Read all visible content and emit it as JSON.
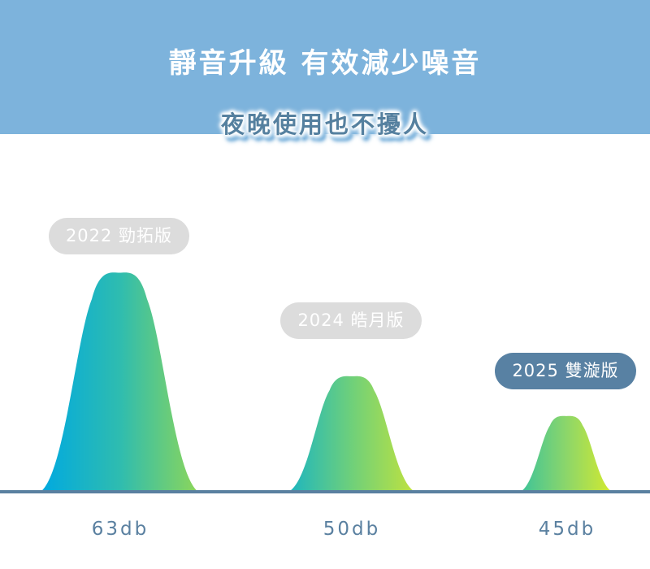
{
  "header": {
    "title": "靜音升級 有效減少噪音",
    "subtitle": "夜晚使用也不擾人"
  },
  "colors": {
    "band": "#7db3dc",
    "baseline": "#5a80a0",
    "pill_gray": "#dcdcdc",
    "pill_highlight": "#5881a3"
  },
  "chart_data": {
    "type": "area",
    "unit": "db",
    "categories": [
      "2022 勁拓版",
      "2024 皓月版",
      "2025 雙漩版"
    ],
    "values": [
      63,
      50,
      45
    ],
    "value_labels": [
      "63db",
      "50db",
      "45db"
    ],
    "highlight_index": 2,
    "gradients": [
      [
        "#00a9e0",
        "#2ebcb0",
        "#8cd65a"
      ],
      [
        "#1cb5c0",
        "#6fd07a",
        "#c0e23e"
      ],
      [
        "#3cc39a",
        "#8cd66a",
        "#d4ea2e"
      ]
    ]
  }
}
